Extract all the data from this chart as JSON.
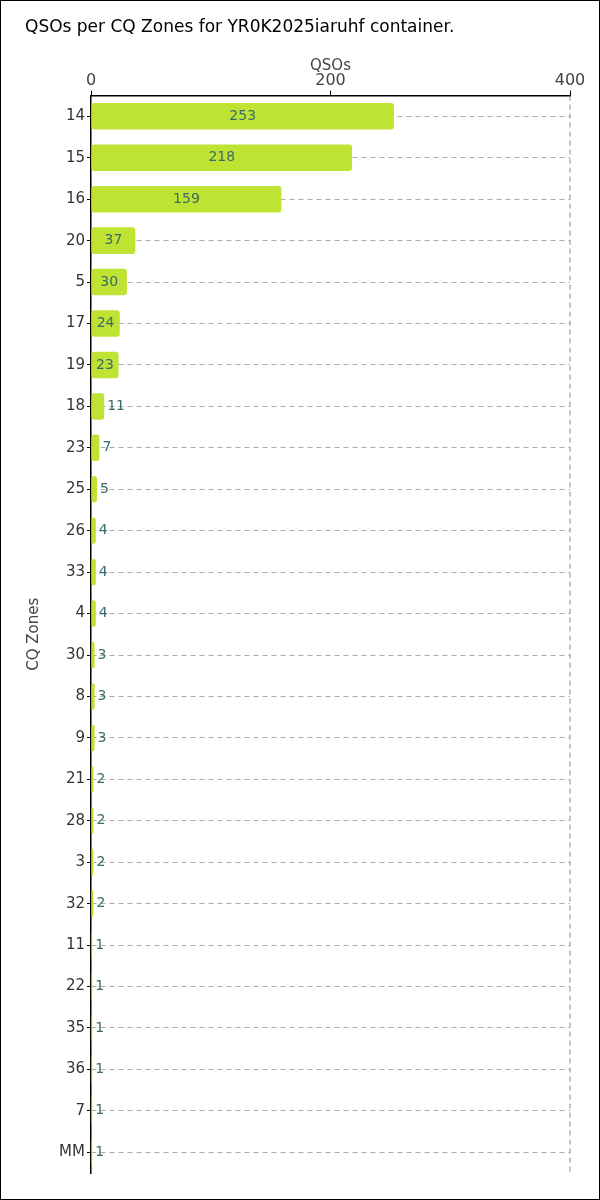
{
  "chart_data": {
    "type": "bar",
    "orientation": "horizontal",
    "title": "QSOs per CQ Zones for YR0K2025iaruhf container.",
    "xlabel": "QSOs",
    "ylabel": "CQ Zones",
    "categories": [
      "14",
      "15",
      "16",
      "20",
      "5",
      "17",
      "19",
      "18",
      "23",
      "25",
      "26",
      "33",
      "4",
      "30",
      "8",
      "9",
      "21",
      "28",
      "3",
      "32",
      "11",
      "22",
      "35",
      "36",
      "7",
      "MM"
    ],
    "values": [
      253,
      218,
      159,
      37,
      30,
      24,
      23,
      11,
      7,
      5,
      4,
      4,
      4,
      3,
      3,
      3,
      2,
      2,
      2,
      2,
      1,
      1,
      1,
      1,
      1,
      1
    ],
    "color": "#bee333",
    "xlim": [
      0,
      400
    ],
    "xticks": [
      0,
      200,
      400
    ],
    "grid": "y",
    "data_labels": true
  }
}
